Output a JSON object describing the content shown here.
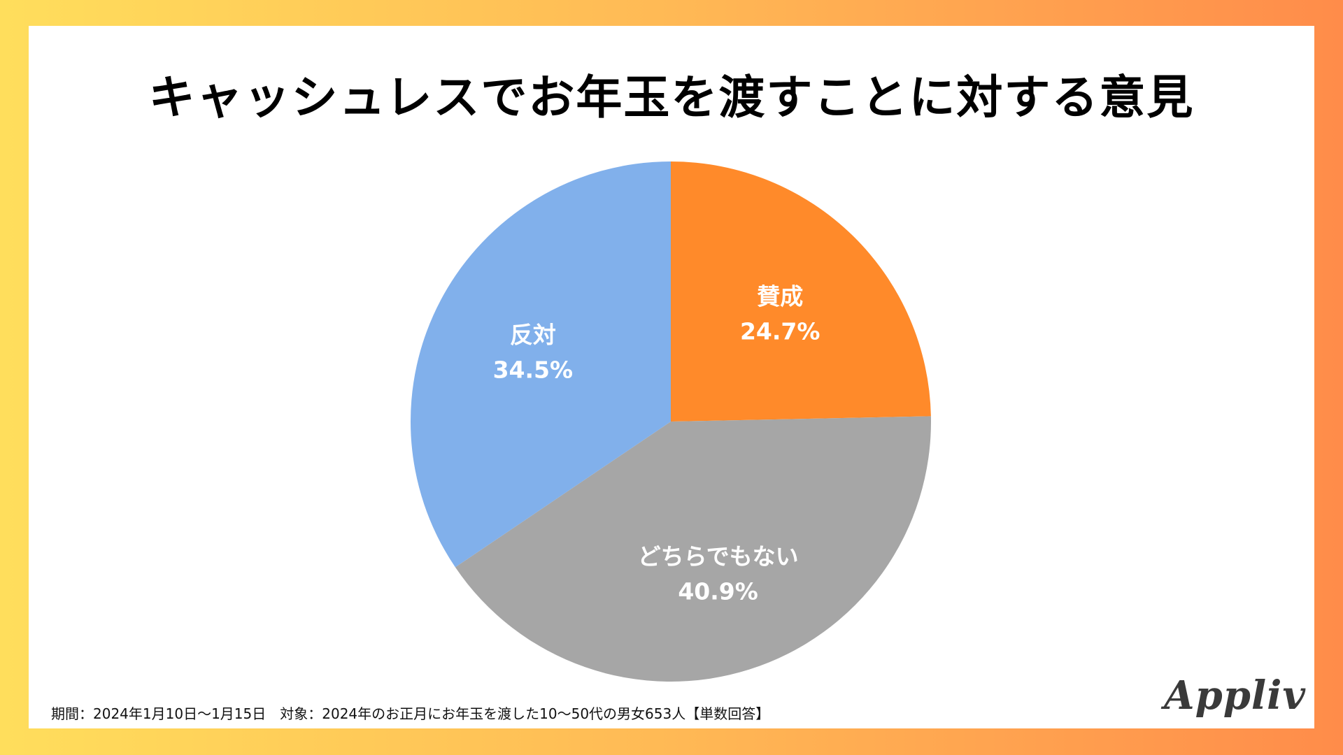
{
  "header": {
    "title": "キャッシュレスでお年玉を渡すことに対する意見"
  },
  "chart_data": {
    "type": "pie",
    "slices": [
      {
        "label": "賛成",
        "value": 24.7,
        "display": "24.7%",
        "color": "#ff8a2a"
      },
      {
        "label": "どちらでもない",
        "value": 40.9,
        "display": "40.9%",
        "color": "#a6a6a6"
      },
      {
        "label": "反対",
        "value": 34.5,
        "display": "34.5%",
        "color": "#81b0eb"
      }
    ],
    "start": "12 o'clock",
    "direction": "clockwise"
  },
  "footer": {
    "note": "期間：2024年1月10日〜1月15日　対象：2024年のお正月にお年玉を渡した10〜50代の男女653人【単数回答】",
    "brand": "Appliv"
  }
}
